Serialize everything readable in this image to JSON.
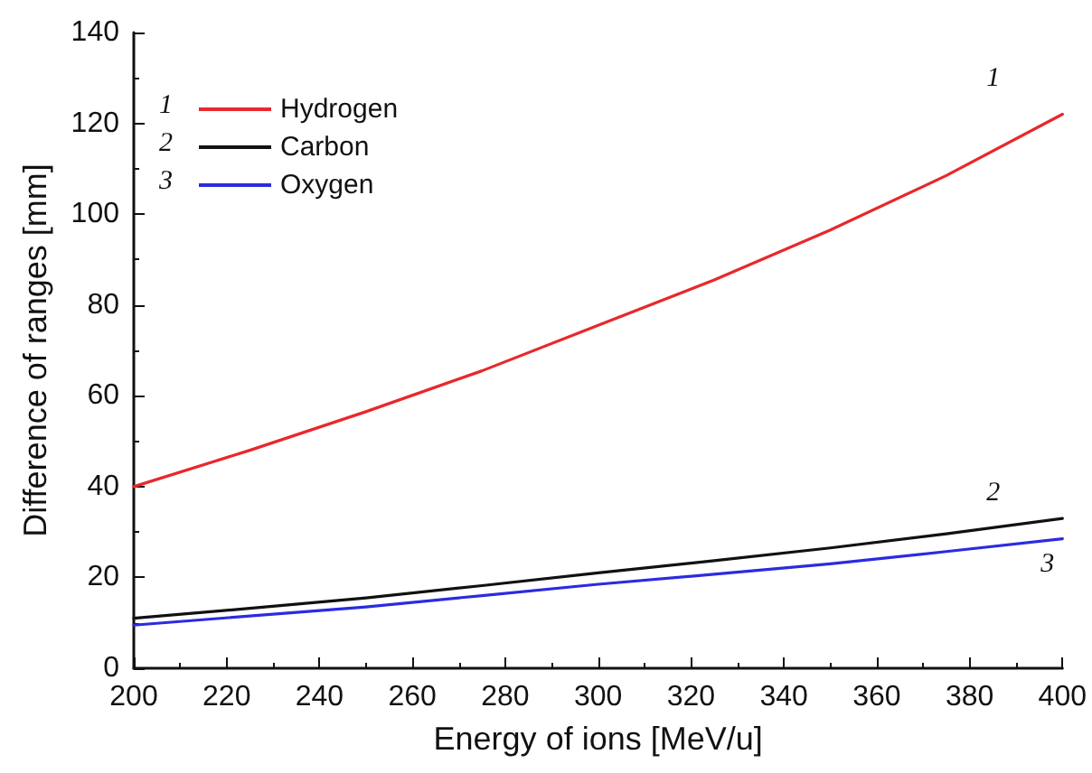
{
  "chart_data": {
    "type": "line",
    "xlabel": "Energy of ions [MeV/u]",
    "ylabel": "Difference of ranges [mm]",
    "x": [
      200,
      225,
      250,
      275,
      300,
      325,
      350,
      375,
      400
    ],
    "series": [
      {
        "name": "Hydrogen",
        "color": "#e8282b",
        "values": [
          40,
          48,
          56.5,
          65.5,
          75.5,
          85.5,
          96.5,
          108.5,
          122
        ]
      },
      {
        "name": "Carbon",
        "color": "#111111",
        "values": [
          11,
          13.2,
          15.5,
          18.2,
          21,
          23.7,
          26.5,
          29.6,
          33
        ]
      },
      {
        "name": "Oxygen",
        "color": "#2b2be0",
        "values": [
          9.5,
          11.5,
          13.5,
          16,
          18.5,
          20.7,
          23,
          25.7,
          28.5
        ]
      }
    ],
    "annotations": [
      "1",
      "2",
      "3"
    ],
    "xlim": [
      200,
      400
    ],
    "xticks": [
      200,
      220,
      240,
      260,
      280,
      300,
      320,
      340,
      360,
      380,
      400
    ],
    "ylim": [
      0,
      140
    ],
    "yticks": [
      0,
      20,
      40,
      60,
      80,
      100,
      120,
      140
    ],
    "grid": false,
    "legend": "top left",
    "marker": "none",
    "line_style": "solid"
  }
}
